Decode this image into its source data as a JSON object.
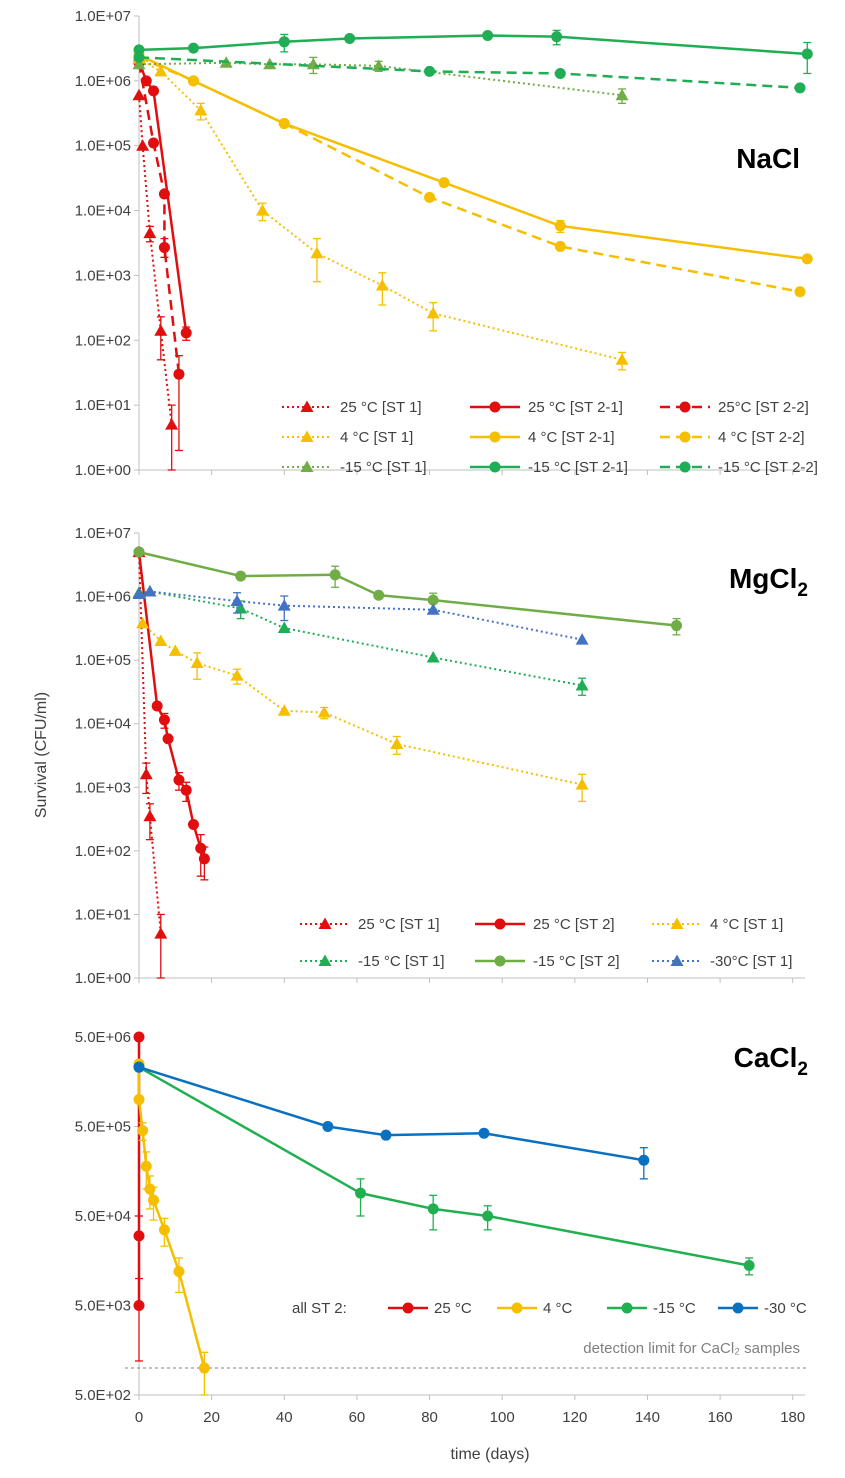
{
  "figure": {
    "ylabel": "Survival (CFU/ml)",
    "xlabel": "time (days)",
    "x_ticks": [
      "0",
      "20",
      "40",
      "60",
      "80",
      "100",
      "120",
      "140",
      "160",
      "180"
    ]
  },
  "colors": {
    "red": "#e00e0e",
    "yellow": "#f5bf00",
    "green": "#1fad55",
    "olive_green": "#70ad47",
    "blue": "#4472c4",
    "cacl_green": "#20b050",
    "cacl_blue": "#0a70c0"
  },
  "chart_data": [
    {
      "type": "line",
      "title": "NaCl",
      "xlabel": "time (days)",
      "ylabel": "Survival (CFU/ml)",
      "xlim": [
        0,
        182
      ],
      "ylim": [
        1,
        10000000
      ],
      "yscale": "log",
      "y_ticks": [
        "1.0E+07",
        "1.0E+06",
        "1.0E+05",
        "1.0E+04",
        "1.0E+03",
        "1.0E+02",
        "1.0E+01",
        "1.0E+00"
      ],
      "legend_position": "bottom-right",
      "series": [
        {
          "name": "25 °C [ST 1]",
          "color": "#e00e0e",
          "dash": "dotted",
          "marker": "triangle",
          "x": [
            0,
            1,
            3,
            6,
            9
          ],
          "y": [
            600000,
            100000,
            4500,
            140,
            5
          ],
          "err": [
            [
              0,
              0
            ],
            [
              0,
              0
            ],
            [
              1200,
              1200
            ],
            [
              90,
              90
            ],
            [
              4,
              5
            ]
          ]
        },
        {
          "name": "25 °C [ST 2-1]",
          "color": "#e00e0e",
          "dash": "solid",
          "marker": "circle",
          "x": [
            0,
            2,
            4,
            13
          ],
          "y": [
            2000000,
            1000000,
            700000,
            130
          ],
          "err": [
            [
              0,
              0
            ],
            [
              0,
              0
            ],
            [
              0,
              0
            ],
            [
              30,
              30
            ]
          ]
        },
        {
          "name": "25°C [ST 2-2]",
          "color": "#e00e0e",
          "dash": "dashed",
          "marker": "circle",
          "x": [
            0,
            4,
            7,
            7,
            11
          ],
          "y": [
            1900000,
            110000,
            18000,
            2700,
            30
          ],
          "err": [
            [
              0,
              0
            ],
            [
              0,
              0
            ],
            [
              0,
              0
            ],
            [
              800,
              1000
            ],
            [
              28,
              28
            ]
          ]
        },
        {
          "name": "4 °C [ST 1]",
          "color": "#f5bf00",
          "dash": "dotted",
          "marker": "triangle",
          "x": [
            0,
            6,
            17,
            34,
            49,
            67,
            81,
            133
          ],
          "y": [
            2200000,
            1400000,
            350000,
            10000,
            2200,
            700,
            260,
            50
          ],
          "err": [
            [
              0,
              0
            ],
            [
              0,
              0
            ],
            [
              100000,
              100000
            ],
            [
              3000,
              3000
            ],
            [
              1400,
              1500
            ],
            [
              350,
              400
            ],
            [
              120,
              120
            ],
            [
              15,
              15
            ]
          ]
        },
        {
          "name": "4 °C [ST 2-1]",
          "color": "#f5bf00",
          "dash": "solid",
          "marker": "circle",
          "x": [
            0,
            15,
            40,
            84,
            116,
            184
          ],
          "y": [
            2500000,
            1000000,
            220000,
            27000,
            5800,
            1800
          ],
          "err": [
            [
              0,
              0
            ],
            [
              0,
              0
            ],
            [
              0,
              0
            ],
            [
              0,
              0
            ],
            [
              1200,
              1200
            ],
            [
              0,
              0
            ]
          ]
        },
        {
          "name": "4 °C [ST 2-2]",
          "color": "#f5bf00",
          "dash": "dashed",
          "marker": "circle",
          "x": [
            0,
            15,
            40,
            80,
            116,
            182
          ],
          "y": [
            2300000,
            1000000,
            220000,
            16000,
            2800,
            560
          ],
          "err": [
            [
              0,
              0
            ],
            [
              0,
              0
            ],
            [
              0,
              0
            ],
            [
              0,
              0
            ],
            [
              0,
              0
            ],
            [
              0,
              0
            ]
          ]
        },
        {
          "name": "-15 °C [ST 1]",
          "color": "#70ad47",
          "dash": "dotted",
          "marker": "triangle",
          "x": [
            0,
            24,
            36,
            48,
            66,
            133
          ],
          "y": [
            1800000,
            1900000,
            1800000,
            1800000,
            1700000,
            600000
          ],
          "err": [
            [
              0,
              0
            ],
            [
              0,
              0
            ],
            [
              0,
              0
            ],
            [
              500000,
              500000
            ],
            [
              300000,
              300000
            ],
            [
              150000,
              150000
            ]
          ]
        },
        {
          "name": "-15 °C [ST 2-1]",
          "color": "#1fad55",
          "dash": "solid",
          "marker": "circle",
          "x": [
            0,
            15,
            40,
            58,
            96,
            115,
            184
          ],
          "y": [
            3000000,
            3200000,
            4000000,
            4500000,
            5000000,
            4800000,
            2600000
          ],
          "err": [
            [
              0,
              0
            ],
            [
              0,
              0
            ],
            [
              1200000,
              1200000
            ],
            [
              0,
              0
            ],
            [
              0,
              0
            ],
            [
              1200000,
              1200000
            ],
            [
              1300000,
              1300000
            ]
          ]
        },
        {
          "name": "-15 °C [ST 2-2]",
          "color": "#1fad55",
          "dash": "dashed",
          "marker": "circle",
          "x": [
            0,
            80,
            116,
            182
          ],
          "y": [
            2300000,
            1400000,
            1300000,
            780000
          ],
          "err": [
            [
              0,
              0
            ],
            [
              0,
              0
            ],
            [
              0,
              0
            ],
            [
              0,
              0
            ]
          ]
        }
      ]
    },
    {
      "type": "line",
      "title": "MgCl2",
      "xlabel": "time (days)",
      "ylabel": "Survival (CFU/ml)",
      "xlim": [
        0,
        182
      ],
      "ylim": [
        1,
        10000000
      ],
      "yscale": "log",
      "y_ticks": [
        "1.0E+07",
        "1.0E+06",
        "1.0E+05",
        "1.0E+04",
        "1.0E+03",
        "1.0E+02",
        "1.0E+01",
        "1.0E+00"
      ],
      "legend_position": "bottom-right",
      "series": [
        {
          "name": "25 °C [ST 1]",
          "color": "#e00e0e",
          "dash": "dotted",
          "marker": "triangle",
          "x": [
            0,
            2,
            3,
            6
          ],
          "y": [
            5000000,
            1600,
            350,
            5
          ],
          "err": [
            [
              0,
              0
            ],
            [
              800,
              800
            ],
            [
              200,
              200
            ],
            [
              4,
              5
            ]
          ]
        },
        {
          "name": "25 °C [ST 2]",
          "color": "#e00e0e",
          "dash": "solid",
          "marker": "circle",
          "x": [
            0,
            5,
            7,
            8,
            11,
            13,
            15,
            17,
            18
          ],
          "y": [
            5000000,
            19000,
            11500,
            5800,
            1300,
            900,
            260,
            110,
            75
          ],
          "err": [
            [
              0,
              0
            ],
            [
              0,
              0
            ],
            [
              3000,
              3000
            ],
            [
              0,
              0
            ],
            [
              400,
              400
            ],
            [
              300,
              300
            ],
            [
              0,
              0
            ],
            [
              70,
              70
            ],
            [
              40,
              40
            ]
          ]
        },
        {
          "name": "4 °C [ST 1]",
          "color": "#f5bf00",
          "dash": "dotted",
          "marker": "triangle",
          "x": [
            1,
            6,
            10,
            16,
            27,
            40,
            51,
            71,
            122
          ],
          "y": [
            380000,
            200000,
            140000,
            90000,
            57000,
            16000,
            15000,
            4800,
            1100
          ],
          "err": [
            [
              0,
              0
            ],
            [
              0,
              0
            ],
            [
              0,
              0
            ],
            [
              40000,
              40000
            ],
            [
              15000,
              15000
            ],
            [
              0,
              0
            ],
            [
              3000,
              3000
            ],
            [
              1500,
              1500
            ],
            [
              500,
              500
            ]
          ]
        },
        {
          "name": "-15 °C [ST 1]",
          "color": "#1fad55",
          "dash": "dotted",
          "marker": "triangle",
          "x": [
            0,
            3,
            28,
            40,
            81,
            122
          ],
          "y": [
            1150000,
            1200000,
            650000,
            320000,
            110000,
            40000
          ],
          "err": [
            [
              0,
              0
            ],
            [
              0,
              0
            ],
            [
              200000,
              200000
            ],
            [
              0,
              0
            ],
            [
              0,
              0
            ],
            [
              12000,
              12000
            ]
          ]
        },
        {
          "name": "-15 °C [ST 2]",
          "color": "#70ad47",
          "dash": "solid",
          "marker": "circle",
          "x": [
            0,
            28,
            54,
            66,
            81,
            148
          ],
          "y": [
            5000000,
            2100000,
            2200000,
            1050000,
            880000,
            350000
          ],
          "err": [
            [
              0,
              0
            ],
            [
              0,
              0
            ],
            [
              800000,
              800000
            ],
            [
              0,
              0
            ],
            [
              250000,
              250000
            ],
            [
              100000,
              100000
            ]
          ]
        },
        {
          "name": "-30°C [ST 1]",
          "color": "#4472c4",
          "dash": "dotted",
          "marker": "triangle",
          "x": [
            0,
            3,
            27,
            40,
            81,
            122
          ],
          "y": [
            1100000,
            1200000,
            850000,
            720000,
            620000,
            210000
          ],
          "err": [
            [
              0,
              0
            ],
            [
              0,
              0
            ],
            [
              300000,
              300000
            ],
            [
              300000,
              300000
            ],
            [
              0,
              0
            ],
            [
              0,
              0
            ]
          ]
        }
      ]
    },
    {
      "type": "line",
      "title": "CaCl2",
      "xlabel": "time (days)",
      "ylabel": "Survival (CFU/ml)",
      "xlim": [
        0,
        182
      ],
      "ylim": [
        500,
        5000000
      ],
      "yscale": "log",
      "y_ticks": [
        "5.0E+06",
        "5.0E+05",
        "5.0E+04",
        "5.0E+03",
        "5.0E+02"
      ],
      "legend_title": "all ST 2:",
      "legend_position": "bottom-right",
      "annotation": "detection limit for CaCl₂ samples",
      "detection_limit": 1000,
      "series": [
        {
          "name": "25 °C",
          "color": "#e00e0e",
          "dash": "solid",
          "marker": "circle",
          "x": [
            0,
            0,
            0
          ],
          "y": [
            5000000,
            30000,
            5000
          ],
          "err": [
            [
              0,
              0
            ],
            [
              20000,
              20000
            ],
            [
              3800,
              0
            ]
          ]
        },
        {
          "name": "4 °C",
          "color": "#f5bf00",
          "dash": "solid",
          "marker": "circle",
          "x": [
            0,
            0,
            1,
            2,
            3,
            4,
            7,
            11,
            18
          ],
          "y": [
            2500000,
            1000000,
            450000,
            180000,
            100000,
            75000,
            35000,
            12000,
            1000
          ],
          "err": [
            [
              0,
              0
            ],
            [
              0,
              0
            ],
            [
              100000,
              100000
            ],
            [
              80000,
              80000
            ],
            [
              40000,
              40000
            ],
            [
              30000,
              30000
            ],
            [
              12000,
              12000
            ],
            [
              5000,
              5000
            ],
            [
              500,
              500
            ]
          ]
        },
        {
          "name": "-15 °C",
          "color": "#20b050",
          "dash": "solid",
          "marker": "circle",
          "x": [
            0,
            61,
            81,
            96,
            168
          ],
          "y": [
            2300000,
            90000,
            60000,
            50000,
            14000
          ],
          "err": [
            [
              0,
              0
            ],
            [
              40000,
              40000
            ],
            [
              25000,
              25000
            ],
            [
              15000,
              15000
            ],
            [
              3000,
              3000
            ]
          ]
        },
        {
          "name": "-30 °C",
          "color": "#0a70c0",
          "dash": "solid",
          "marker": "circle",
          "x": [
            0,
            52,
            68,
            95,
            139
          ],
          "y": [
            2300000,
            500000,
            400000,
            420000,
            210000
          ],
          "err": [
            [
              0,
              0
            ],
            [
              0,
              0
            ],
            [
              0,
              0
            ],
            [
              0,
              0
            ],
            [
              80000,
              80000
            ]
          ]
        }
      ]
    }
  ]
}
